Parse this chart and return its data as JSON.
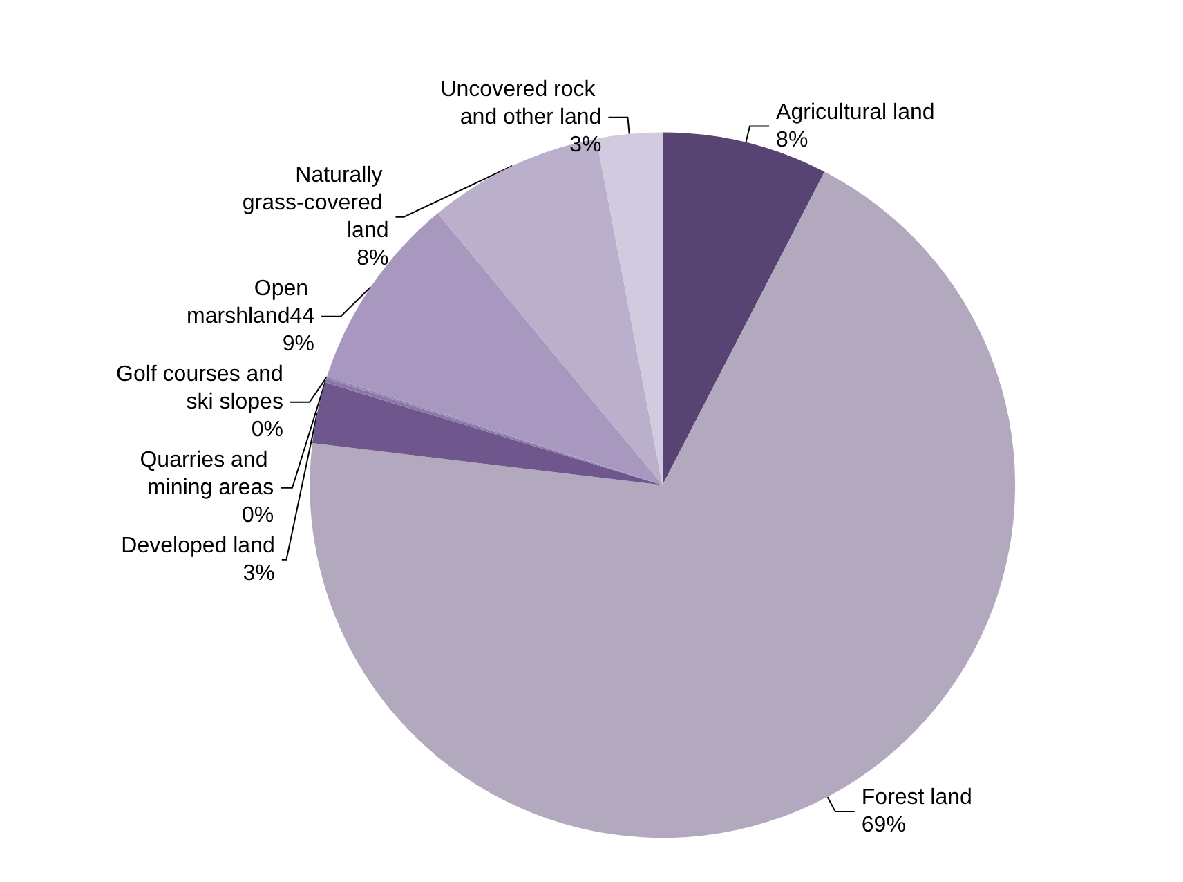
{
  "chart_data": {
    "type": "pie",
    "categories": [
      "Agricultural land",
      "Forest land",
      "Developed land",
      "Quarries and mining areas",
      "Golf courses and ski slopes",
      "Open marshland44",
      "Naturally grass-covered land",
      "Uncovered rock and other land"
    ],
    "values": [
      7.6,
      69.3,
      2.8,
      0.2,
      0.1,
      9.0,
      8.0,
      3.0
    ],
    "value_labels": [
      "8%",
      "69%",
      "3%",
      "0%",
      "0%",
      "9%",
      "8%",
      "3%"
    ],
    "colors": [
      "#574473",
      "#b3a9bf",
      "#6f578e",
      "#8a78a8",
      "#9a89b7",
      "#a898bf",
      "#bbb0cb",
      "#d2cade"
    ]
  }
}
